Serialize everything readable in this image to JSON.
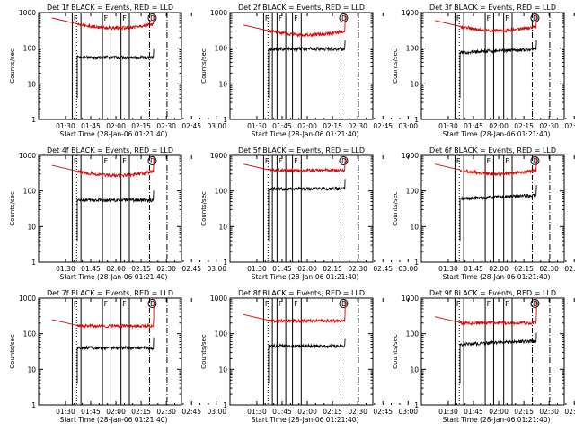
{
  "page": {
    "background": "#ffffff",
    "event_color": "#000000",
    "lld_color": "#dd0000"
  },
  "panels_common": {
    "ylabel": "Counts/sec",
    "xlabel": "Start Time (28-Jan-06 01:21:40)",
    "x_tick_labels": [
      "01:30",
      "01:45",
      "02:00",
      "02:15",
      "02:30",
      "02:45",
      "03:00"
    ],
    "y_tick_labels": [
      "1",
      "10",
      "100",
      "1000"
    ],
    "y_scale": "log",
    "ylim": [
      1,
      1000
    ],
    "xlim_minutes_after_0130": [
      -8,
      34.5
    ],
    "marker_F": "F",
    "marker_D": "D"
  },
  "chart_data": [
    {
      "type": "line",
      "title": "Det 1f BLACK = Events, RED = LLD",
      "series": [
        {
          "name": "Events",
          "level": 55,
          "shape": "flat"
        },
        {
          "name": "LLD",
          "level": 470,
          "shape": "dip"
        }
      ],
      "vlines_solid": [
        2.0,
        4.6,
        11.0,
        13.5,
        16.5,
        19.0
      ],
      "vline_dotted": 3.3,
      "vlines_dashdot": [
        25.0,
        30.2
      ]
    },
    {
      "type": "line",
      "title": "Det 2f BLACK = Events, RED = LLD",
      "series": [
        {
          "name": "Events",
          "level": 95,
          "shape": "flat"
        },
        {
          "name": "LLD",
          "level": 300,
          "shape": "dip"
        }
      ],
      "vlines_solid": [
        2.0,
        4.6,
        6.0,
        8.6,
        10.6,
        13.2
      ],
      "vline_dotted": 3.3,
      "vlines_dashdot": [
        25.0,
        30.2
      ]
    },
    {
      "type": "line",
      "title": "Det 3f BLACK = Events, RED = LLD",
      "series": [
        {
          "name": "Events",
          "level": 75,
          "shape": "rise"
        },
        {
          "name": "LLD",
          "level": 400,
          "shape": "dip"
        }
      ],
      "vlines_solid": [
        2.0,
        4.6,
        11.0,
        13.5,
        16.5,
        19.0
      ],
      "vline_dotted": 3.3,
      "vlines_dashdot": [
        25.0,
        30.2
      ]
    },
    {
      "type": "line",
      "title": "Det 4f BLACK = Events, RED = LLD",
      "series": [
        {
          "name": "Events",
          "level": 55,
          "shape": "flat"
        },
        {
          "name": "LLD",
          "level": 350,
          "shape": "dip"
        }
      ],
      "vlines_solid": [
        2.0,
        4.6,
        11.0,
        13.5,
        16.5,
        19.0
      ],
      "vline_dotted": 3.3,
      "vlines_dashdot": [
        25.0,
        30.2
      ]
    },
    {
      "type": "line",
      "title": "Det 5f BLACK = Events, RED = LLD",
      "series": [
        {
          "name": "Events",
          "level": 115,
          "shape": "flat"
        },
        {
          "name": "LLD",
          "level": 380,
          "shape": "flat"
        }
      ],
      "vlines_solid": [
        2.0,
        4.6,
        6.0,
        8.6,
        10.6,
        13.2
      ],
      "vline_dotted": 3.3,
      "vlines_dashdot": [
        25.0,
        30.2
      ]
    },
    {
      "type": "line",
      "title": "Det 6f BLACK = Events, RED = LLD",
      "series": [
        {
          "name": "Events",
          "level": 60,
          "shape": "rise"
        },
        {
          "name": "LLD",
          "level": 380,
          "shape": "dip"
        }
      ],
      "vlines_solid": [
        2.0,
        4.6,
        11.0,
        13.5,
        16.5,
        19.0
      ],
      "vline_dotted": 3.3,
      "vlines_dashdot": [
        25.0,
        30.2
      ]
    },
    {
      "type": "line",
      "title": "Det 7f BLACK = Events, RED = LLD",
      "series": [
        {
          "name": "Events",
          "level": 40,
          "shape": "flat"
        },
        {
          "name": "LLD",
          "level": 165,
          "shape": "flat"
        }
      ],
      "vlines_solid": [
        2.0,
        4.6,
        11.0,
        13.5,
        16.5,
        19.0
      ],
      "vline_dotted": 3.3,
      "vlines_dashdot": [
        25.0,
        30.2
      ]
    },
    {
      "type": "line",
      "title": "Det 8f BLACK = Events, RED = LLD",
      "series": [
        {
          "name": "Events",
          "level": 45,
          "shape": "flat"
        },
        {
          "name": "LLD",
          "level": 230,
          "shape": "flat"
        }
      ],
      "vlines_solid": [
        2.0,
        4.6,
        6.0,
        8.6,
        10.6,
        13.2
      ],
      "vline_dotted": 3.3,
      "vlines_dashdot": [
        25.0,
        30.2
      ]
    },
    {
      "type": "line",
      "title": "Det 9f BLACK = Events, RED = LLD",
      "series": [
        {
          "name": "Events",
          "level": 50,
          "shape": "rise"
        },
        {
          "name": "LLD",
          "level": 200,
          "shape": "flat"
        }
      ],
      "vlines_solid": [
        2.0,
        4.6,
        11.0,
        13.5,
        16.5,
        19.0
      ],
      "vline_dotted": 3.3,
      "vlines_dashdot": [
        25.0,
        30.2
      ]
    }
  ]
}
